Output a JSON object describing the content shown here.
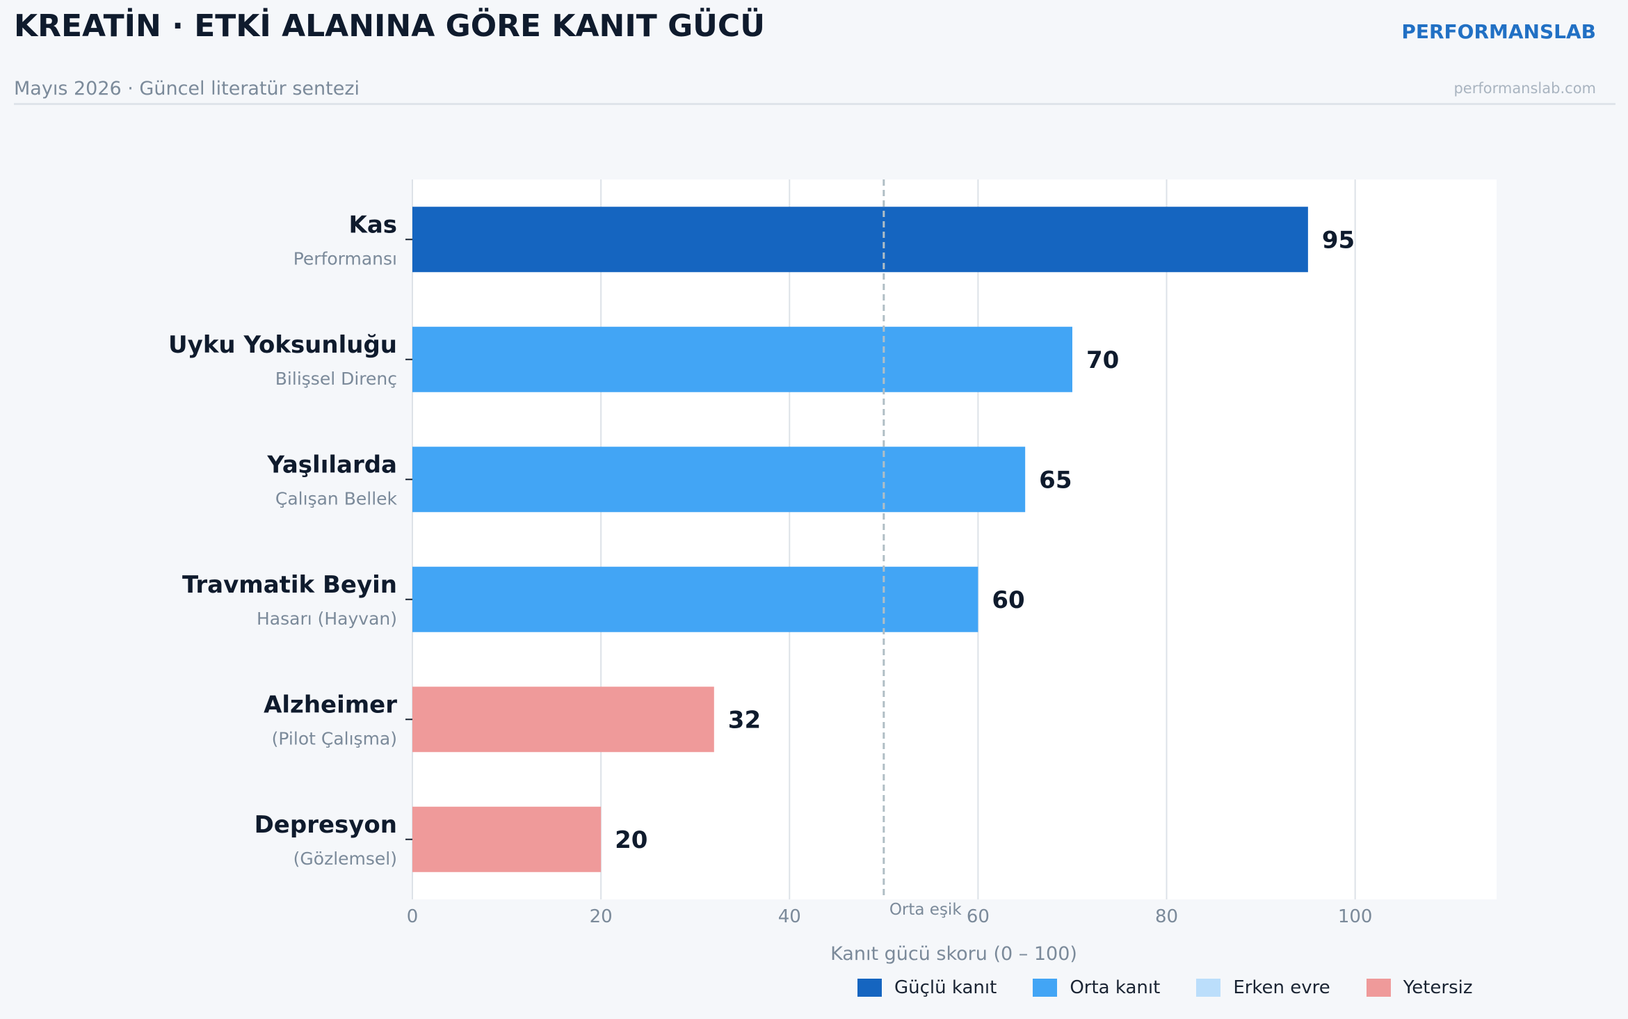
{
  "header": {
    "title": "KREATİN · ETKİ ALANINA GÖRE KANIT GÜCÜ",
    "brand": "PERFORMANSLAB",
    "subtitle": "Mayıs 2026  ·  Güncel literatür sentezi",
    "brand_url": "performanslab.com"
  },
  "colors": {
    "strong": "#1565c0",
    "moderate": "#42a5f5",
    "early": "#bbdefb",
    "insufficient": "#ef9a9a",
    "label_dark": "#0f1b2d",
    "label_muted": "#7b8a9a",
    "threshold_line": "#b0bec5"
  },
  "chart_data": {
    "type": "bar",
    "orientation": "horizontal",
    "categories": [
      {
        "name": "Kas",
        "sub": "Performansı"
      },
      {
        "name": "Uyku Yoksunluğu",
        "sub": "Bilişsel Direnç"
      },
      {
        "name": "Yaşlılarda",
        "sub": "Çalışan Bellek"
      },
      {
        "name": "Travmatik Beyin",
        "sub": "Hasarı (Hayvan)"
      },
      {
        "name": "Alzheimer",
        "sub": "(Pilot Çalışma)"
      },
      {
        "name": "Depresyon",
        "sub": "(Gözlemsel)"
      }
    ],
    "values": [
      95,
      70,
      65,
      60,
      32,
      20
    ],
    "value_labels": [
      "95",
      "70",
      "65",
      "60",
      "32",
      "20"
    ],
    "evidence_class": [
      "strong",
      "moderate",
      "moderate",
      "moderate",
      "insufficient",
      "insufficient"
    ],
    "xlim": [
      0,
      115
    ],
    "xticks": [
      0,
      20,
      40,
      60,
      80,
      100
    ],
    "xtick_labels": [
      "0",
      "20",
      "40",
      "60",
      "80",
      "100"
    ],
    "xlabel": "Kanıt gücü skoru  (0 – 100)",
    "ylabel": "",
    "grid": true,
    "threshold": {
      "value": 50,
      "label": "Orta eşik"
    },
    "legend": {
      "position": "bottom-right",
      "items": [
        {
          "key": "strong",
          "label": "Güçlü kanıt"
        },
        {
          "key": "moderate",
          "label": "Orta kanıt"
        },
        {
          "key": "early",
          "label": "Erken evre"
        },
        {
          "key": "insufficient",
          "label": "Yetersiz"
        }
      ]
    }
  }
}
